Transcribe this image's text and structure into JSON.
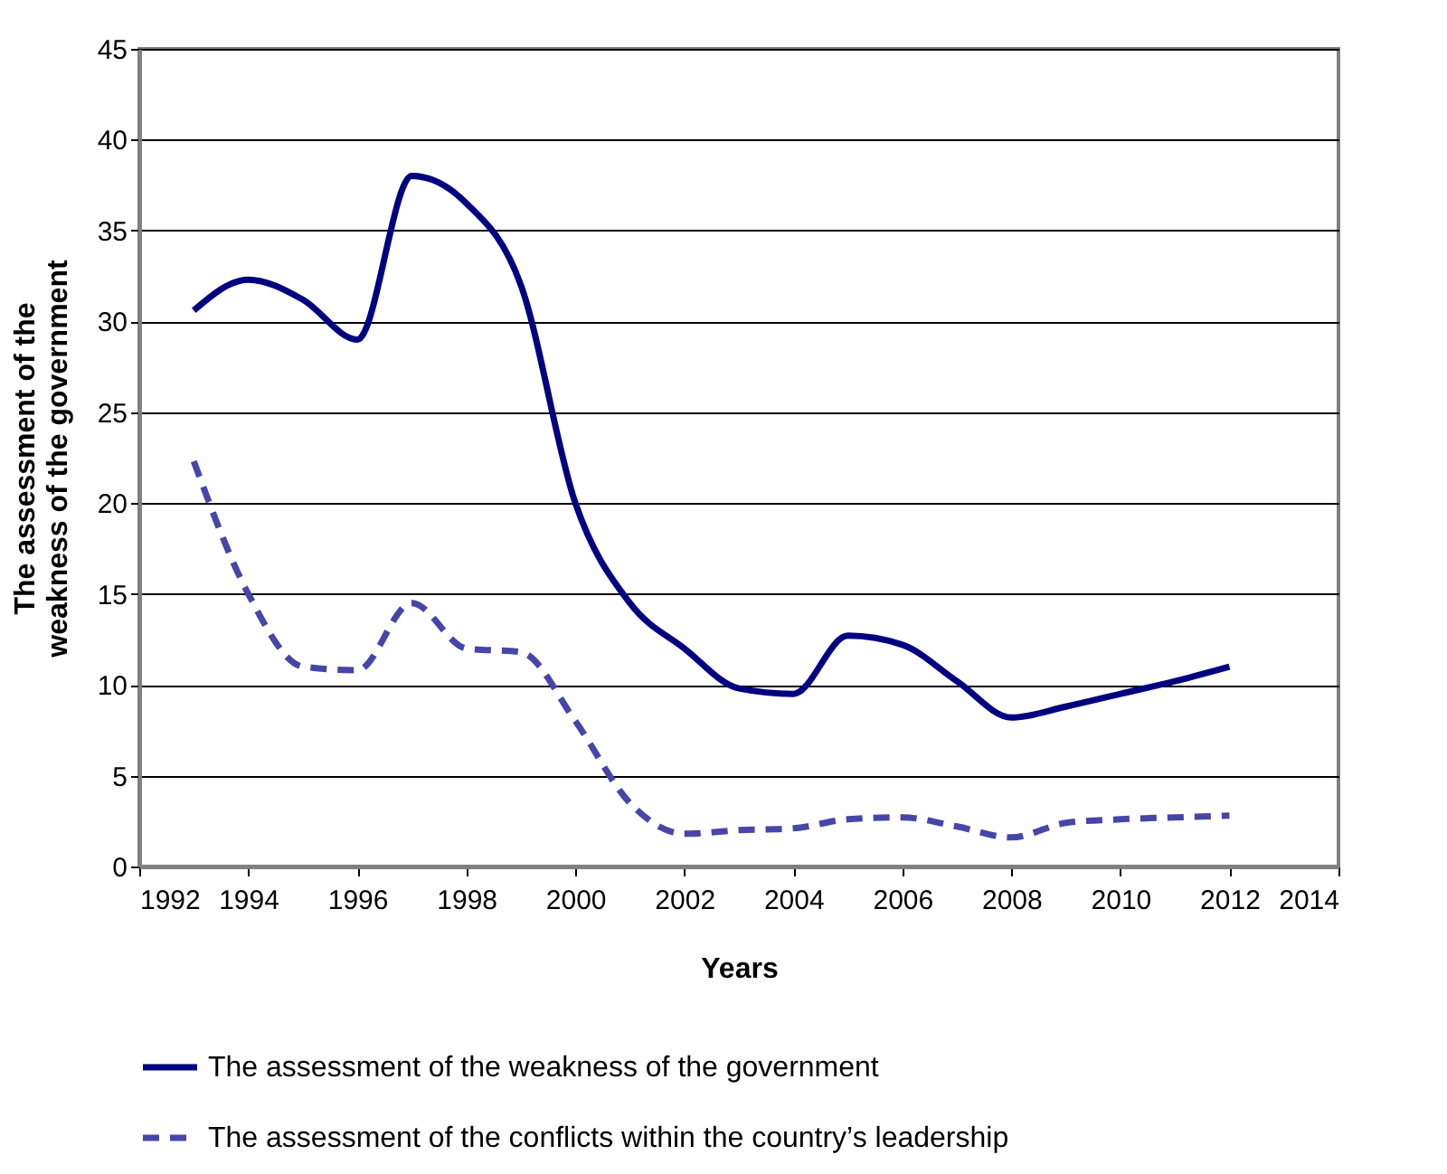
{
  "chart_data": {
    "type": "line",
    "xlabel": "Years",
    "ylabel": "The assessment  of the weakness of the government",
    "x": [
      1993,
      1994,
      1995,
      1996,
      1997,
      1998,
      1999,
      2000,
      2001,
      2002,
      2003,
      2004,
      2005,
      2006,
      2007,
      2008,
      2009,
      2010,
      2011,
      2012
    ],
    "series": [
      {
        "name": "The assessment of the weakness of the government",
        "color": "#000080",
        "line_style": "solid",
        "values": [
          30.6,
          32.3,
          31.2,
          29,
          38,
          36.5,
          32,
          20,
          14.5,
          12,
          9.8,
          9.5,
          12.7,
          12.2,
          10.2,
          8.2,
          8.8,
          9.5,
          10.2,
          11
        ]
      },
      {
        "name": "The assessment  of the conflicts within the country’s leadership",
        "color": "#4646a8",
        "line_style": "dashed",
        "values": [
          22.3,
          15,
          11,
          10.8,
          14.5,
          12,
          11.8,
          8,
          3.5,
          1.8,
          2,
          2.1,
          2.6,
          2.7,
          2.2,
          1.6,
          2.4,
          2.6,
          2.7,
          2.8
        ]
      }
    ],
    "xlim": [
      1992,
      2014
    ],
    "xticks": [
      1992,
      1994,
      1996,
      1998,
      2000,
      2002,
      2004,
      2006,
      2008,
      2010,
      2012,
      2014
    ],
    "ylim": [
      0,
      45
    ],
    "yticks": [
      0,
      5,
      10,
      15,
      20,
      25,
      30,
      35,
      40,
      45
    ],
    "grid": "y",
    "legend": "bottom",
    "marker": "none"
  }
}
